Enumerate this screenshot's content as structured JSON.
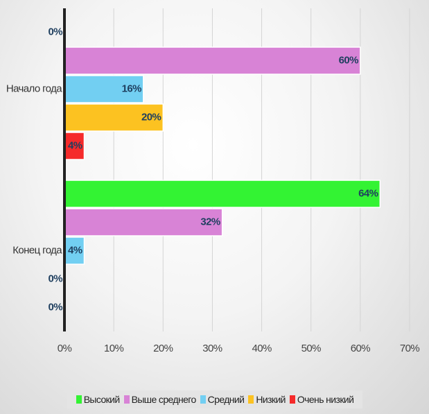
{
  "chart_data": {
    "type": "bar",
    "orientation": "horizontal",
    "categories": [
      "Начало года",
      "Конец года"
    ],
    "series": [
      {
        "name": "Высокий",
        "color": "#33f333",
        "values": [
          0,
          64
        ],
        "value_labels": [
          "0%",
          "64%"
        ]
      },
      {
        "name": "Выше среднего",
        "color": "#d883d6",
        "values": [
          60,
          32
        ],
        "value_labels": [
          "60%",
          "32%"
        ]
      },
      {
        "name": "Средний",
        "color": "#72cff2",
        "values": [
          16,
          4
        ],
        "value_labels": [
          "16%",
          "4%"
        ]
      },
      {
        "name": "Низкий",
        "color": "#fcc221",
        "values": [
          20,
          0
        ],
        "value_labels": [
          "20%",
          "0%"
        ]
      },
      {
        "name": "Очень низкий",
        "color": "#f52a2a",
        "values": [
          4,
          0
        ],
        "value_labels": [
          "4%",
          "0%"
        ]
      }
    ],
    "xlim": [
      0,
      70
    ],
    "xticks": [
      {
        "value": 0,
        "label": "0%"
      },
      {
        "value": 10,
        "label": "10%"
      },
      {
        "value": 20,
        "label": "20%"
      },
      {
        "value": 30,
        "label": "30%"
      },
      {
        "value": 40,
        "label": "40%"
      },
      {
        "value": 50,
        "label": "50%"
      },
      {
        "value": 60,
        "label": "60%"
      },
      {
        "value": 70,
        "label": "70%"
      }
    ],
    "grid": true,
    "legend": "bottom"
  }
}
